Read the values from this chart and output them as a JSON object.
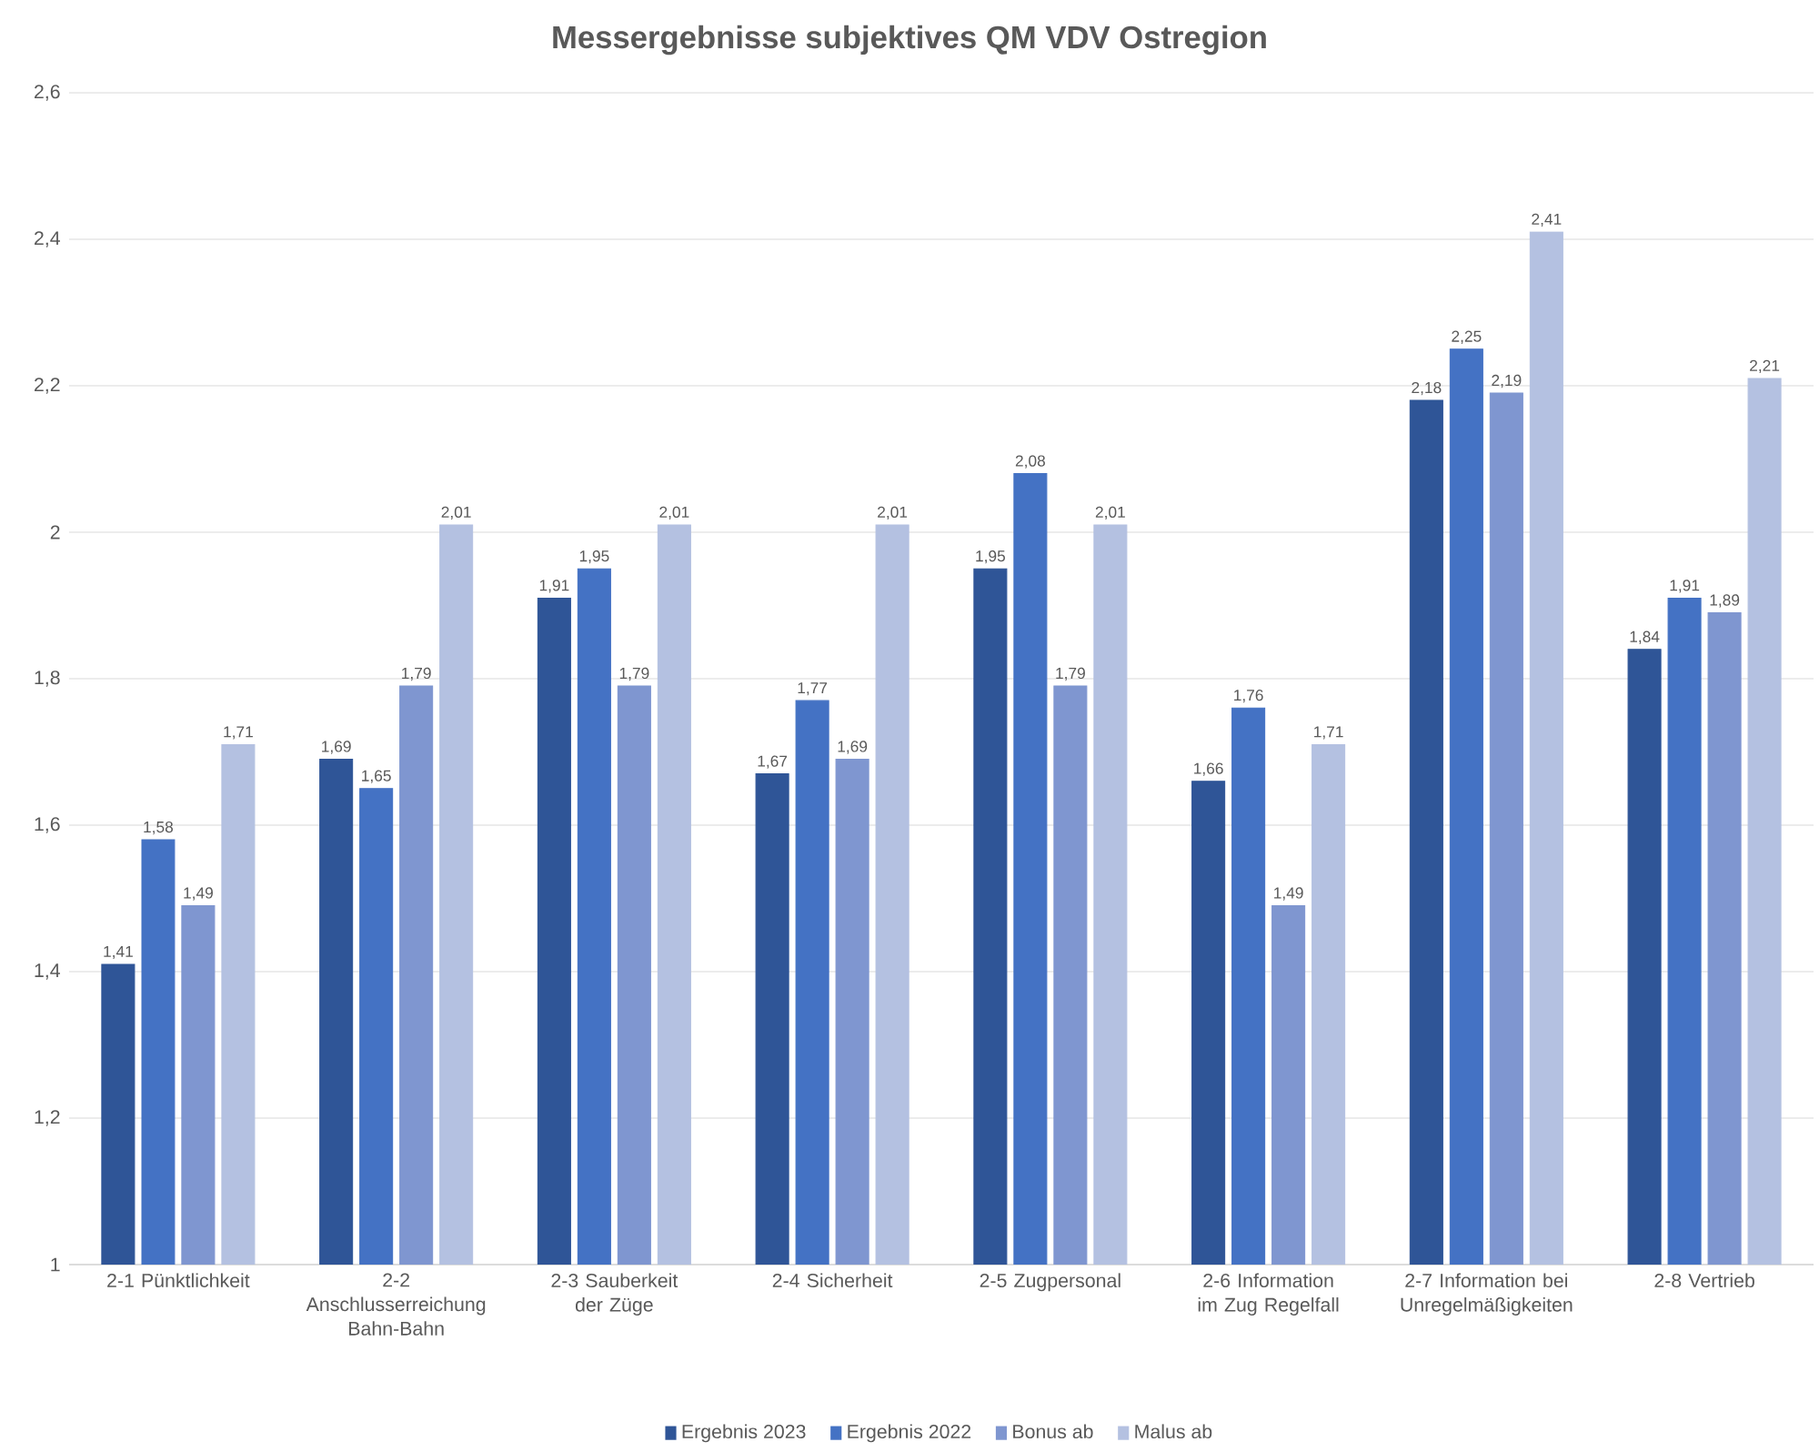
{
  "chart_data": {
    "type": "bar",
    "title": "Messergebnisse subjektives QM VDV Ostregion",
    "categories": [
      "2-1 Pünktlichkeit",
      "2-2 Anschlusserreichung Bahn-Bahn",
      "2-3 Sauberkeit der Züge",
      "2-4 Sicherheit",
      "2-5 Zugpersonal",
      "2-6 Information im Zug Regelfall",
      "2-7 Information bei Unregelmäßigkeiten",
      "2-8 Vertrieb"
    ],
    "series": [
      {
        "name": "Ergebnis 2023",
        "color": "#2f5597",
        "values": [
          1.41,
          1.69,
          1.91,
          1.67,
          1.95,
          1.66,
          2.18,
          1.84
        ],
        "value_labels": [
          "1,41",
          "1,69",
          "1,91",
          "1,67",
          "1,95",
          "1,66",
          "2,18",
          "1,84"
        ]
      },
      {
        "name": "Ergebnis 2022",
        "color": "#4472c4",
        "values": [
          1.58,
          1.65,
          1.95,
          1.77,
          2.08,
          1.76,
          2.25,
          1.91
        ],
        "value_labels": [
          "1,58",
          "1,65",
          "1,95",
          "1,77",
          "2,08",
          "1,76",
          "2,25",
          "1,91"
        ]
      },
      {
        "name": "Bonus ab",
        "color": "#7f96d0",
        "values": [
          1.49,
          1.79,
          1.79,
          1.69,
          1.79,
          1.49,
          2.19,
          1.89
        ],
        "value_labels": [
          "1,49",
          "1,79",
          "1,79",
          "1,69",
          "1,79",
          "1,49",
          "2,19",
          "1,89"
        ]
      },
      {
        "name": "Malus ab",
        "color": "#b4c1e1",
        "values": [
          1.71,
          2.01,
          2.01,
          2.01,
          2.01,
          1.71,
          2.41,
          2.21
        ],
        "value_labels": [
          "1,71",
          "2,01",
          "2,01",
          "2,01",
          "2,01",
          "1,71",
          "2,41",
          "2,21"
        ]
      }
    ],
    "ylim": [
      1,
      2.6
    ],
    "yticks": [
      1,
      {
        "value": 1.2,
        "label": "1,2"
      },
      {
        "value": 1.4,
        "label": "1,4"
      },
      {
        "value": 1.6,
        "label": "1,6"
      },
      {
        "value": 1.8,
        "label": "1,8"
      },
      2,
      {
        "value": 2.2,
        "label": "2,2"
      },
      {
        "value": 2.4,
        "label": "2,4"
      },
      {
        "value": 2.6,
        "label": "2,6"
      }
    ],
    "grid": "y",
    "legend": "bottom"
  }
}
